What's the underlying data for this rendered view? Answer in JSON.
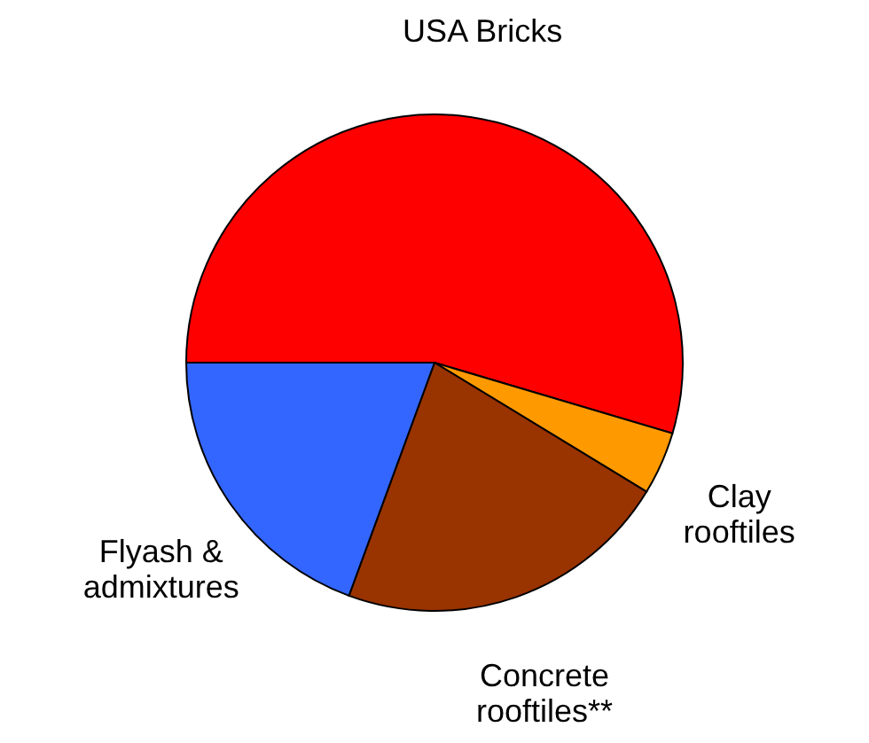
{
  "chart_data": {
    "type": "pie",
    "categories": [
      "USA Bricks",
      "Clay\nrooftiles",
      "Concrete\nrooftiles**",
      "Flyash &\nadmixtures"
    ],
    "values": [
      54.6,
      4.1,
      21.9,
      19.4
    ],
    "colors": [
      "#ff0000",
      "#ff9900",
      "#993300",
      "#3366ff"
    ]
  }
}
